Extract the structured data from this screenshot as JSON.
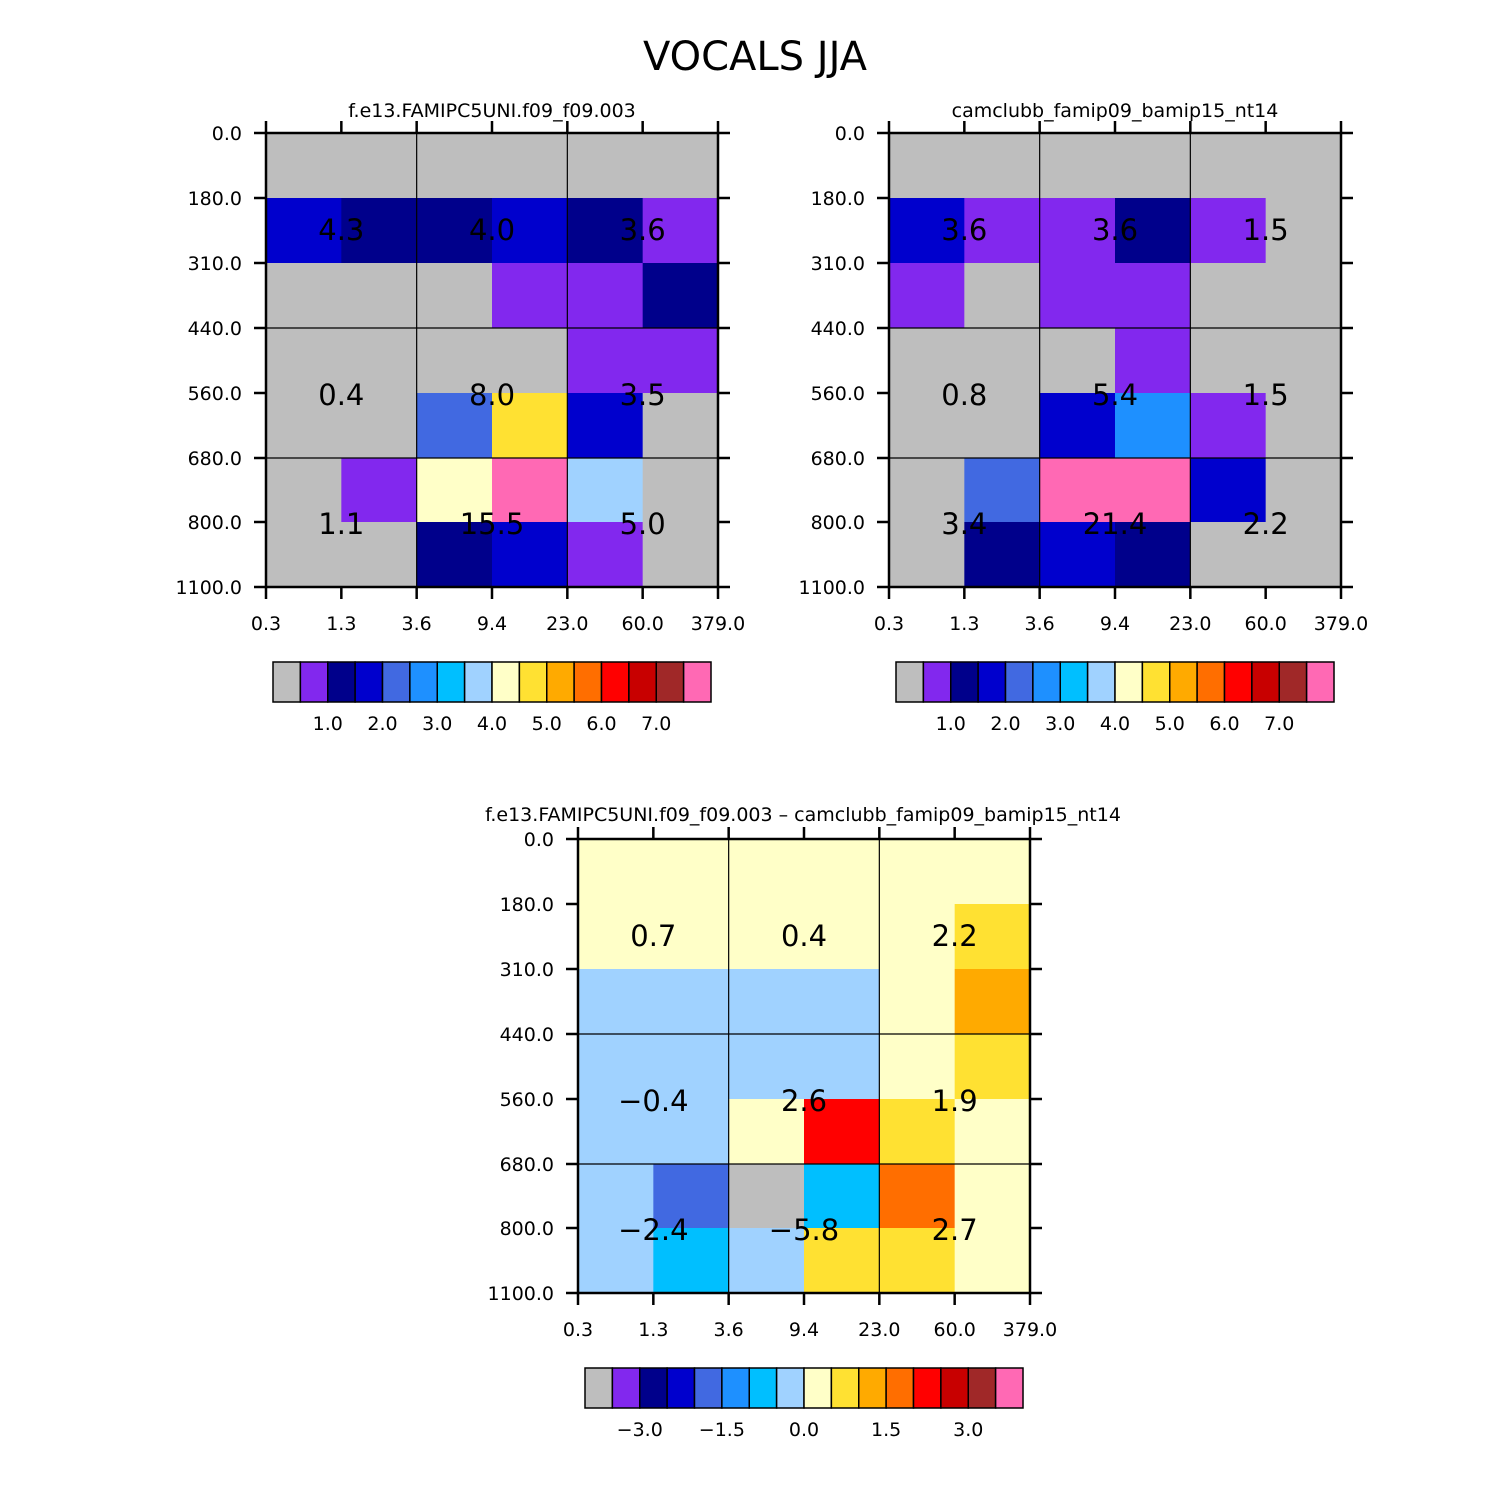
{
  "main_title": "VOCALS JJA",
  "colors": {
    "grid_line": "#000000",
    "background": "#ffffff"
  },
  "chart_data": [
    {
      "type": "heatmap",
      "title": "f.e13.FAMIPC5UNI.f09_f09.003",
      "x_tick_labels": [
        "0.3",
        "1.3",
        "3.6",
        "9.4",
        "23.0",
        "60.0",
        "379.0"
      ],
      "y_tick_labels": [
        "0.0",
        "180.0",
        "310.0",
        "440.0",
        "560.0",
        "680.0",
        "800.0",
        "1100.0"
      ],
      "cells": [
        [
          "#BEBEBE",
          "#BEBEBE",
          "#BEBEBE",
          "#BEBEBE",
          "#BEBEBE",
          "#BEBEBE"
        ],
        [
          "#0000CD",
          "#00008B",
          "#00008B",
          "#0000CD",
          "#00008B",
          "#8228EE"
        ],
        [
          "#BEBEBE",
          "#BEBEBE",
          "#BEBEBE",
          "#8228EE",
          "#8228EE",
          "#00008B"
        ],
        [
          "#BEBEBE",
          "#BEBEBE",
          "#BEBEBE",
          "#BEBEBE",
          "#8228EE",
          "#8228EE"
        ],
        [
          "#BEBEBE",
          "#BEBEBE",
          "#4169E1",
          "#FFE132",
          "#0000CD",
          "#BEBEBE"
        ],
        [
          "#BEBEBE",
          "#8228EE",
          "#FFFFC8",
          "#FF69B4",
          "#A0D2FF",
          "#BEBEBE"
        ],
        [
          "#BEBEBE",
          "#BEBEBE",
          "#00008B",
          "#0000CD",
          "#8228EE",
          "#BEBEBE"
        ]
      ],
      "values": [
        [
          "4.3",
          "4.0",
          "3.6"
        ],
        [
          "0.4",
          "8.0",
          "3.5"
        ],
        [
          "1.1",
          "15.5",
          "5.0"
        ]
      ],
      "colorbar": {
        "colors": [
          "#BEBEBE",
          "#8228EE",
          "#00008B",
          "#0000CD",
          "#4169E1",
          "#1E90FF",
          "#00BFFF",
          "#A0D2FF",
          "#FFFFC8",
          "#FFE132",
          "#FFAA00",
          "#FF6E00",
          "#FF0000",
          "#C80000",
          "#A02828",
          "#FF69B4"
        ],
        "labels": [
          "1.0",
          "2.0",
          "3.0",
          "4.0",
          "5.0",
          "6.0",
          "7.0"
        ]
      }
    },
    {
      "type": "heatmap",
      "title": "camclubb_famip09_bamip15_nt14",
      "x_tick_labels": [
        "0.3",
        "1.3",
        "3.6",
        "9.4",
        "23.0",
        "60.0",
        "379.0"
      ],
      "y_tick_labels": [
        "0.0",
        "180.0",
        "310.0",
        "440.0",
        "560.0",
        "680.0",
        "800.0",
        "1100.0"
      ],
      "cells": [
        [
          "#BEBEBE",
          "#BEBEBE",
          "#BEBEBE",
          "#BEBEBE",
          "#BEBEBE",
          "#BEBEBE"
        ],
        [
          "#0000CD",
          "#8228EE",
          "#8228EE",
          "#00008B",
          "#8228EE",
          "#BEBEBE"
        ],
        [
          "#8228EE",
          "#BEBEBE",
          "#8228EE",
          "#8228EE",
          "#BEBEBE",
          "#BEBEBE"
        ],
        [
          "#BEBEBE",
          "#BEBEBE",
          "#BEBEBE",
          "#8228EE",
          "#BEBEBE",
          "#BEBEBE"
        ],
        [
          "#BEBEBE",
          "#BEBEBE",
          "#0000CD",
          "#1E90FF",
          "#8228EE",
          "#BEBEBE"
        ],
        [
          "#BEBEBE",
          "#4169E1",
          "#FF69B4",
          "#FF69B4",
          "#0000CD",
          "#BEBEBE"
        ],
        [
          "#BEBEBE",
          "#00008B",
          "#0000CD",
          "#00008B",
          "#BEBEBE",
          "#BEBEBE"
        ]
      ],
      "values": [
        [
          "3.6",
          "3.6",
          "1.5"
        ],
        [
          "0.8",
          "5.4",
          "1.5"
        ],
        [
          "3.4",
          "21.4",
          "2.2"
        ]
      ],
      "colorbar": {
        "colors": [
          "#BEBEBE",
          "#8228EE",
          "#00008B",
          "#0000CD",
          "#4169E1",
          "#1E90FF",
          "#00BFFF",
          "#A0D2FF",
          "#FFFFC8",
          "#FFE132",
          "#FFAA00",
          "#FF6E00",
          "#FF0000",
          "#C80000",
          "#A02828",
          "#FF69B4"
        ],
        "labels": [
          "1.0",
          "2.0",
          "3.0",
          "4.0",
          "5.0",
          "6.0",
          "7.0"
        ]
      }
    },
    {
      "type": "heatmap",
      "title": "f.e13.FAMIPC5UNI.f09_f09.003 – camclubb_famip09_bamip15_nt14",
      "x_tick_labels": [
        "0.3",
        "1.3",
        "3.6",
        "9.4",
        "23.0",
        "60.0",
        "379.0"
      ],
      "y_tick_labels": [
        "0.0",
        "180.0",
        "310.0",
        "440.0",
        "560.0",
        "680.0",
        "800.0",
        "1100.0"
      ],
      "cells": [
        [
          "#FFFFC8",
          "#FFFFC8",
          "#FFFFC8",
          "#FFFFC8",
          "#FFFFC8",
          "#FFFFC8"
        ],
        [
          "#FFFFC8",
          "#FFFFC8",
          "#FFFFC8",
          "#FFFFC8",
          "#FFFFC8",
          "#FFE132"
        ],
        [
          "#A0D2FF",
          "#A0D2FF",
          "#A0D2FF",
          "#A0D2FF",
          "#FFFFC8",
          "#FFAA00"
        ],
        [
          "#A0D2FF",
          "#A0D2FF",
          "#A0D2FF",
          "#A0D2FF",
          "#FFFFC8",
          "#FFE132"
        ],
        [
          "#A0D2FF",
          "#A0D2FF",
          "#FFFFC8",
          "#FF0000",
          "#FFE132",
          "#FFFFC8"
        ],
        [
          "#A0D2FF",
          "#4169E1",
          "#BEBEBE",
          "#00BFFF",
          "#FF6E00",
          "#FFFFC8"
        ],
        [
          "#A0D2FF",
          "#00BFFF",
          "#A0D2FF",
          "#FFE132",
          "#FFE132",
          "#FFFFC8"
        ]
      ],
      "values": [
        [
          "0.7",
          "0.4",
          "2.2"
        ],
        [
          "−0.4",
          "2.6",
          "1.9"
        ],
        [
          "−2.4",
          "−5.8",
          "2.7"
        ]
      ],
      "colorbar": {
        "colors": [
          "#BEBEBE",
          "#8228EE",
          "#00008B",
          "#0000CD",
          "#4169E1",
          "#1E90FF",
          "#00BFFF",
          "#A0D2FF",
          "#FFFFC8",
          "#FFE132",
          "#FFAA00",
          "#FF6E00",
          "#FF0000",
          "#C80000",
          "#A02828",
          "#FF69B4"
        ],
        "labels": [
          "−3.0",
          "−1.5",
          "0.0",
          "1.5",
          "3.0"
        ]
      }
    }
  ]
}
